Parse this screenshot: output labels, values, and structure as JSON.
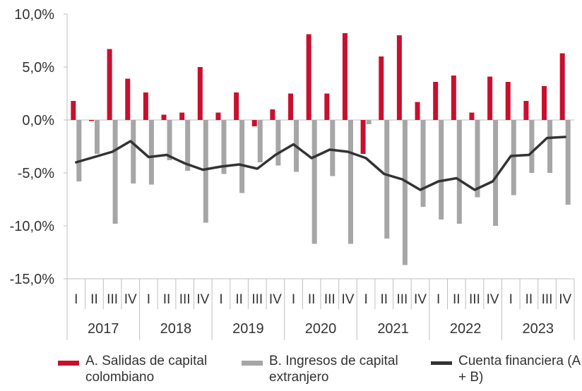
{
  "chart_data": {
    "type": "bar",
    "years": [
      "2017",
      "2018",
      "2019",
      "2020",
      "2021",
      "2022",
      "2023"
    ],
    "quarters": [
      "I",
      "II",
      "III",
      "IV"
    ],
    "y_ticks": [
      10,
      5,
      0,
      -5,
      -10,
      -15
    ],
    "y_tick_labels": [
      "10,0%",
      "5,0%",
      "0,0%",
      "-5,0%",
      "-10,0%",
      "-15,0%"
    ],
    "ylim": [
      -15,
      10
    ],
    "series": [
      {
        "name": "A. Salidas de capital colombiano",
        "type": "bar",
        "color": "#c8102e",
        "values": [
          1.8,
          -0.1,
          6.7,
          3.9,
          2.6,
          0.5,
          0.7,
          5.0,
          0.7,
          2.6,
          -0.6,
          1.0,
          2.5,
          8.1,
          2.5,
          8.2,
          -3.2,
          6.0,
          8.0,
          1.7,
          3.6,
          4.2,
          0.7,
          4.1,
          3.6,
          1.8,
          3.2,
          6.3
        ]
      },
      {
        "name": "B. Ingresos de capital extranjero",
        "type": "bar",
        "color": "#a6a6a6",
        "values": [
          -5.8,
          -3.2,
          -9.8,
          -6.0,
          -6.1,
          -3.8,
          -4.8,
          -9.7,
          -5.1,
          -6.9,
          -4.0,
          -4.3,
          -4.9,
          -11.7,
          -5.3,
          -11.7,
          -0.4,
          -11.2,
          -13.7,
          -8.2,
          -9.4,
          -9.8,
          -7.3,
          -10.0,
          -7.1,
          -5.0,
          -5.0,
          -8.0
        ]
      },
      {
        "name": "Cuenta financiera (A + B)",
        "type": "line",
        "color": "#333333",
        "values": [
          -4.0,
          -3.5,
          -3.0,
          -2.0,
          -3.5,
          -3.3,
          -4.1,
          -4.7,
          -4.4,
          -4.2,
          -4.6,
          -3.3,
          -2.3,
          -3.6,
          -2.8,
          -3.0,
          -3.6,
          -5.1,
          -5.6,
          -6.6,
          -5.8,
          -5.5,
          -6.6,
          -5.8,
          -3.4,
          -3.3,
          -1.7,
          -1.6
        ]
      }
    ],
    "legend_position": "bottom",
    "grid": false
  },
  "legend": [
    {
      "label": "A. Salidas de capital colombiano",
      "color": "#c8102e",
      "kind": "bar"
    },
    {
      "label": "B. Ingresos de capital extranjero",
      "color": "#a6a6a6",
      "kind": "bar"
    },
    {
      "label": "Cuenta financiera (A + B)",
      "color": "#333333",
      "kind": "line"
    }
  ]
}
